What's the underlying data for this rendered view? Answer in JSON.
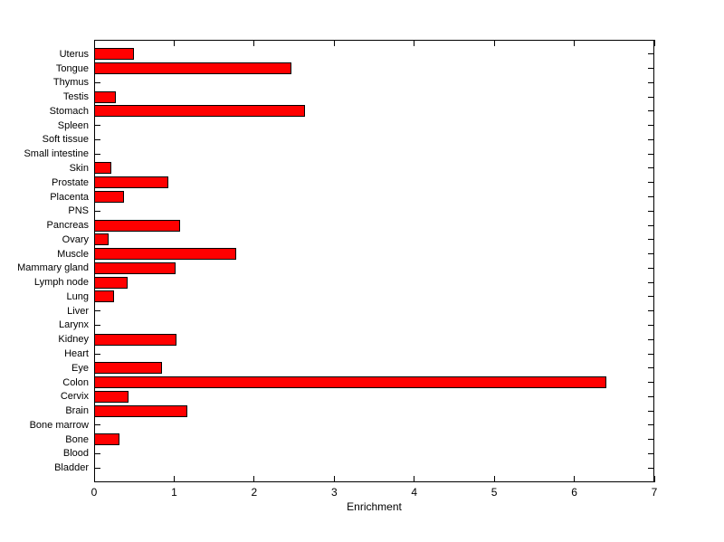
{
  "figure": {
    "background_color": "#ffffff",
    "axis_color": "#000000"
  },
  "chart_data": {
    "type": "bar",
    "orientation": "horizontal",
    "title": "",
    "xlabel": "Enrichment",
    "ylabel": "",
    "xlim": [
      0,
      7
    ],
    "xticks": [
      0,
      1,
      2,
      3,
      4,
      5,
      6,
      7
    ],
    "grid": false,
    "legend": null,
    "bar_color": "#ff0000",
    "bar_edge_color": "#000000",
    "categories": [
      "Uterus",
      "Tongue",
      "Thymus",
      "Testis",
      "Stomach",
      "Spleen",
      "Soft tissue",
      "Small intestine",
      "Skin",
      "Prostate",
      "Placenta",
      "PNS",
      "Pancreas",
      "Ovary",
      "Muscle",
      "Mammary gland",
      "Lymph node",
      "Lung",
      "Liver",
      "Larynx",
      "Kidney",
      "Heart",
      "Eye",
      "Colon",
      "Cervix",
      "Brain",
      "Bone marrow",
      "Bone",
      "Blood",
      "Bladder"
    ],
    "values": [
      0.5,
      2.46,
      0,
      0.27,
      2.63,
      0,
      0,
      0,
      0.21,
      0.93,
      0.37,
      0,
      1.07,
      0.18,
      1.78,
      1.02,
      0.42,
      0.25,
      0,
      0,
      1.03,
      0,
      0.85,
      6.4,
      0.43,
      1.17,
      0,
      0.32,
      0,
      0
    ]
  }
}
